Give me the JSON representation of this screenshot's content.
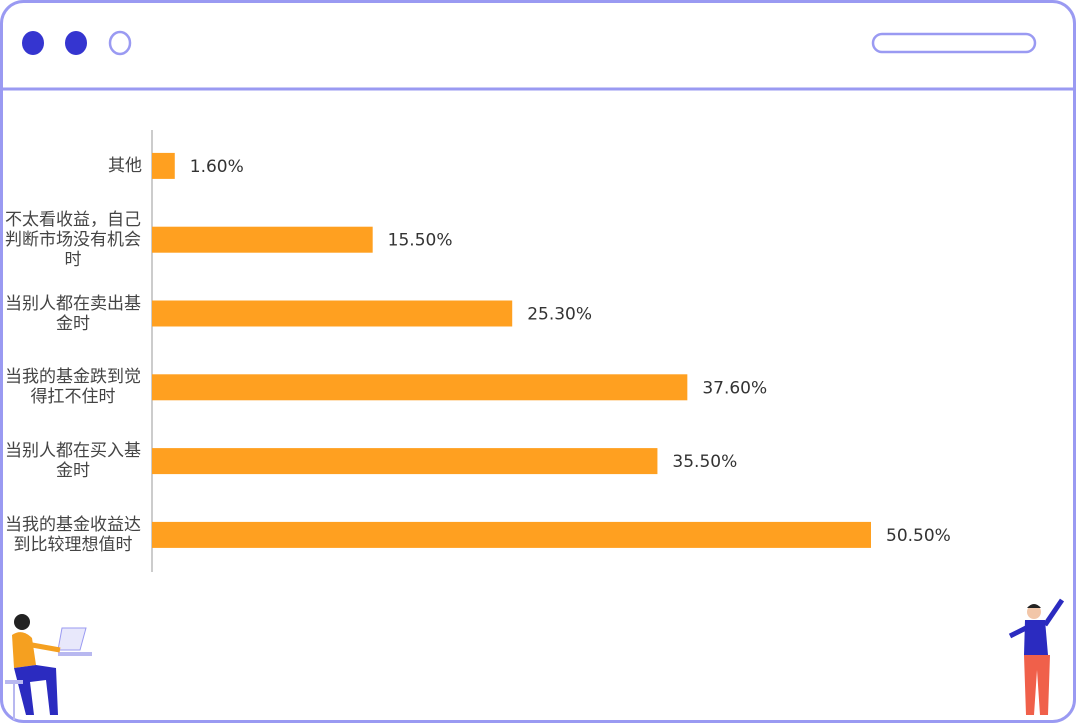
{
  "chart_data": {
    "type": "bar",
    "orientation": "horizontal",
    "categories": [
      "其他",
      "不太看收益，自己判断市场没有机会时",
      "当别人都在卖出基金时",
      "当我的基金跌到觉得扛不住时",
      "当别人都在买入基金时",
      "当我的基金收益达到比较理想值时"
    ],
    "values": [
      1.6,
      15.5,
      25.3,
      37.6,
      35.5,
      50.5
    ],
    "value_labels": [
      "1.60%",
      "15.50%",
      "25.30%",
      "37.60%",
      "35.50%",
      "50.50%"
    ],
    "color": "#ffa020",
    "xlim": [
      0,
      60
    ]
  }
}
